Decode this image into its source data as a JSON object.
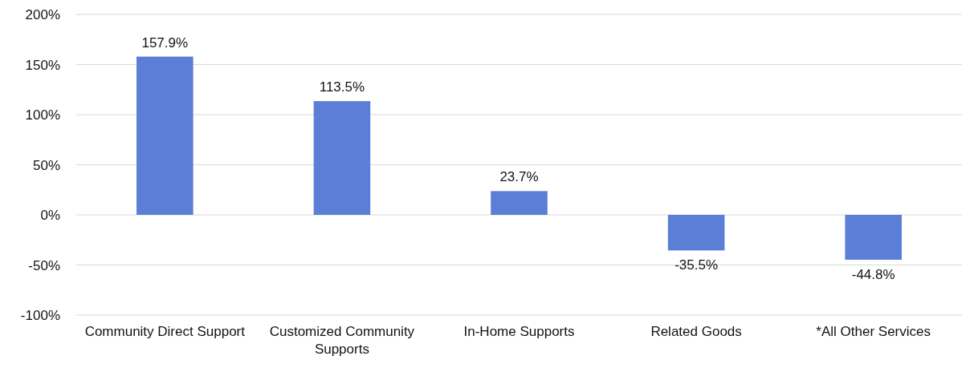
{
  "chart_data": {
    "type": "bar",
    "categories": [
      "Community Direct Support",
      "Customized Community Supports",
      "In-Home Supports",
      "Related Goods",
      "*All Other Services"
    ],
    "values": [
      157.9,
      113.5,
      23.7,
      -35.5,
      -44.8
    ],
    "color": "#5b7fd6",
    "value_labels": [
      "157.9%",
      "113.5%",
      "23.7%",
      "-35.5%",
      "-44.8%"
    ],
    "ylim": [
      -100,
      200
    ],
    "yticks": [
      {
        "value": -100,
        "label": "-100%"
      },
      {
        "value": -50,
        "label": "-50%"
      },
      {
        "value": 0,
        "label": "0%"
      },
      {
        "value": 50,
        "label": "50%"
      },
      {
        "value": 100,
        "label": "100%"
      },
      {
        "value": 150,
        "label": "150%"
      },
      {
        "value": 200,
        "label": "200%"
      }
    ],
    "grid": "y"
  }
}
